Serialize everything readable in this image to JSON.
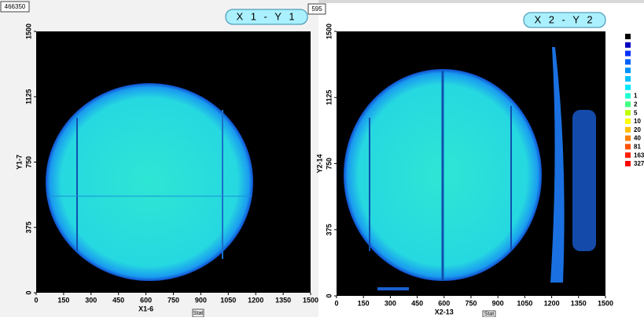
{
  "window": {
    "counter": "466350",
    "counter2": "595",
    "button": "Stat"
  },
  "chart_data": [
    {
      "type": "heatmap",
      "title": "X 1 - Y 1",
      "xlabel": "X1-6",
      "ylabel": "Y1-7",
      "xlim": [
        0,
        1500
      ],
      "ylim": [
        0,
        1500
      ],
      "xticks": [
        0,
        150,
        300,
        450,
        600,
        750,
        900,
        1050,
        1200,
        1350,
        1500
      ],
      "yticks": [
        0,
        375,
        750,
        1125,
        1500
      ]
    },
    {
      "type": "heatmap",
      "title": "X 2 - Y 2",
      "xlabel": "X2-13",
      "ylabel": "Y2-14",
      "xlim": [
        0,
        1500
      ],
      "ylim": [
        0,
        1500
      ],
      "xticks": [
        0,
        150,
        300,
        450,
        600,
        750,
        900,
        1050,
        1200,
        1350,
        1500
      ],
      "yticks": [
        0,
        375,
        750,
        1125,
        1500
      ],
      "colorscale": {
        "colors": [
          "#000000",
          "#0000c0",
          "#0030ff",
          "#0060ff",
          "#0090ff",
          "#00c0ff",
          "#00e8ff",
          "#20ffd0",
          "#40ff80",
          "#c0ff00",
          "#ffff00",
          "#ffc000",
          "#ff8000",
          "#ff5000",
          "#ff2000",
          "#ff0000"
        ],
        "labels": [
          null,
          null,
          null,
          null,
          null,
          null,
          null,
          1,
          2,
          5,
          10,
          20,
          40,
          81,
          163,
          327
        ]
      }
    }
  ]
}
